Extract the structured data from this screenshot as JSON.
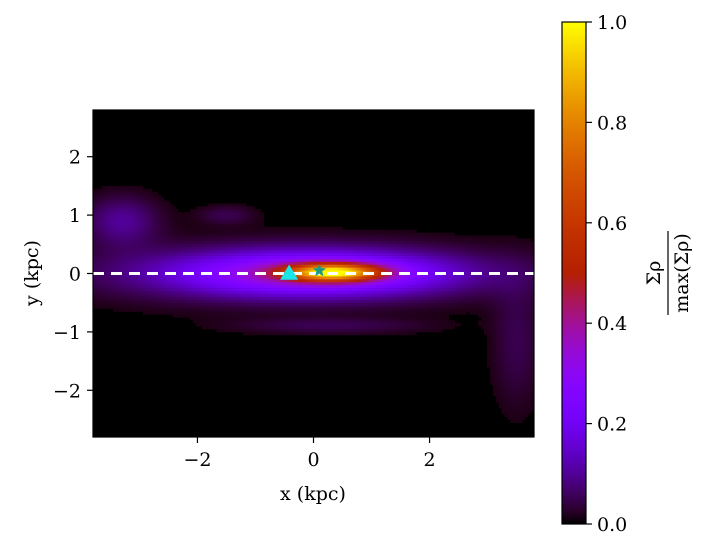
{
  "chart_data": {
    "type": "heatmap",
    "title": "",
    "xlabel": "x (kpc)",
    "ylabel": "y (kpc)",
    "xlim": [
      -3.8,
      3.8
    ],
    "ylim": [
      -2.8,
      2.8
    ],
    "x_ticks": [
      -2,
      0,
      2
    ],
    "x_tick_labels": [
      "−2",
      "0",
      "2"
    ],
    "y_ticks": [
      2,
      1,
      0,
      -1,
      -2
    ],
    "y_tick_labels": [
      "2",
      "1",
      "0",
      "−1",
      "−2"
    ],
    "grid": false,
    "colormap": "gnuplot",
    "colorbar": {
      "label": "Σρ / max(Σρ)",
      "label_numerator": "Σρ",
      "label_denominator": "max(Σρ)",
      "range": [
        0.0,
        1.0
      ],
      "ticks": [
        0.0,
        0.2,
        0.4,
        0.6,
        0.8,
        1.0
      ],
      "tick_labels": [
        "0.0",
        "0.2",
        "0.4",
        "0.6",
        "0.8",
        "1.0"
      ]
    },
    "density_components": [
      {
        "x": 0.35,
        "y": 0.02,
        "sx": 0.55,
        "sy": 0.1,
        "amp": 0.68
      },
      {
        "x": 0.0,
        "y": 0.0,
        "sx": 1.5,
        "sy": 0.24,
        "amp": 0.28
      },
      {
        "x": -0.3,
        "y": 0.0,
        "sx": 2.4,
        "sy": 0.35,
        "amp": 0.13
      },
      {
        "x": -3.3,
        "y": 0.9,
        "sx": 0.45,
        "sy": 0.3,
        "amp": 0.1
      },
      {
        "x": -1.5,
        "y": 1.0,
        "sx": 0.35,
        "sy": 0.12,
        "amp": 0.05
      },
      {
        "x": 0.3,
        "y": -0.9,
        "sx": 1.2,
        "sy": 0.1,
        "amp": 0.05
      },
      {
        "x": 3.5,
        "y": -1.2,
        "sx": 0.3,
        "sy": 0.8,
        "amp": 0.05
      }
    ],
    "reference_line": {
      "y": 0,
      "style": "dashed",
      "color": "#ffffff"
    },
    "markers": [
      {
        "shape": "triangle",
        "x": -0.42,
        "y": 0.0,
        "color": "#19e6e6"
      },
      {
        "shape": "star",
        "x": 0.1,
        "y": 0.05,
        "color": "#1a9a8a"
      }
    ]
  }
}
